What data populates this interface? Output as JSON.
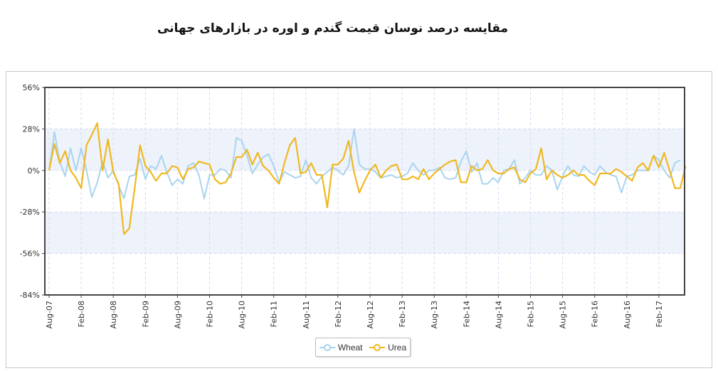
{
  "title": "مقایسه درصد نوسان قیمت گندم و اوره در بازارهای جهانی",
  "colors": {
    "wheat": "#a9d4ee",
    "urea": "#f0b820",
    "band": "#eef2fb",
    "grid": "#d3dcf0",
    "axis": "#333333"
  },
  "chart_data": {
    "type": "line",
    "title": "مقایسه درصد نوسان قیمت گندم و اوره در بازارهای جهانی",
    "xlabel": "",
    "ylabel": "",
    "ylim": [
      -84,
      56
    ],
    "yticks": [
      56,
      28,
      0,
      -28,
      -56,
      -84
    ],
    "ytick_labels": [
      "56%",
      "28%",
      "0%",
      "-28%",
      "-56%",
      "-84%"
    ],
    "x_tick_labels": [
      "Aug-07",
      "Feb-08",
      "Aug-08",
      "Feb-09",
      "Aug-09",
      "Feb-10",
      "Aug-10",
      "Feb-11",
      "Aug-11",
      "Feb-12",
      "Aug-12",
      "Feb-13",
      "Aug-13",
      "Feb-14",
      "Aug-14",
      "Feb-15",
      "Aug-15",
      "Feb-16",
      "Aug-16",
      "Feb-17"
    ],
    "x_start": "Aug-07",
    "legend": "bottom",
    "grid": true,
    "series": [
      {
        "name": "Wheat",
        "color": "#a9d4ee",
        "values": [
          0,
          26,
          6,
          -4,
          15,
          0,
          15,
          0,
          -18,
          -8,
          6,
          -5,
          0,
          -10,
          -19,
          -4,
          -3,
          8,
          -6,
          3,
          1,
          10,
          -1,
          -10,
          -6,
          -9,
          3,
          5,
          -3,
          -19,
          -3,
          -3,
          1,
          0,
          -5,
          22,
          20,
          10,
          -2,
          4,
          9,
          11,
          3,
          -8,
          -1,
          -3,
          -5,
          -4,
          7,
          -5,
          -9,
          -4,
          -1,
          2,
          0,
          -3,
          3,
          28,
          4,
          1,
          1,
          -1,
          -5,
          -4,
          -3,
          -5,
          -4,
          -2,
          5,
          0,
          -3,
          0,
          0,
          2,
          -5,
          -6,
          -5,
          6,
          13,
          -1,
          5,
          -9,
          -9,
          -5,
          -8,
          0,
          1,
          7,
          -9,
          -5,
          0,
          -3,
          -3,
          3,
          0,
          -13,
          -4,
          3,
          -3,
          -4,
          3,
          -1,
          -3,
          3,
          -1,
          -3,
          -4,
          -15,
          -4,
          -3,
          0,
          0,
          0,
          10,
          7,
          0,
          -5,
          5,
          7
        ]
      },
      {
        "name": "Urea",
        "color": "#f0b820",
        "values": [
          0,
          18,
          5,
          13,
          0,
          -5,
          -12,
          17,
          24,
          32,
          0,
          21,
          -1,
          -9,
          -43,
          -39,
          -12,
          17,
          3,
          -1,
          -7,
          -2,
          -2,
          3,
          2,
          -6,
          1,
          2,
          6,
          5,
          4,
          -6,
          -9,
          -8,
          -2,
          9,
          9,
          14,
          4,
          12,
          3,
          0,
          -5,
          -9,
          5,
          17,
          22,
          -2,
          -1,
          5,
          -3,
          -3,
          -25,
          4,
          4,
          8,
          20,
          -1,
          -15,
          -7,
          0,
          4,
          -5,
          0,
          3,
          4,
          -6,
          -6,
          -4,
          -6,
          1,
          -6,
          -2,
          1,
          4,
          6,
          7,
          -8,
          -8,
          3,
          0,
          1,
          7,
          0,
          -2,
          -2,
          1,
          2,
          -6,
          -8,
          -2,
          1,
          15,
          -6,
          0,
          -3,
          -5,
          -3,
          0,
          -3,
          -3,
          -7,
          -10,
          -2,
          -2,
          -2,
          1,
          -1,
          -4,
          -7,
          2,
          5,
          0,
          10,
          2,
          12,
          0,
          -12,
          -12,
          3
        ]
      }
    ]
  },
  "legend": {
    "wheat_label": "Wheat",
    "urea_label": "Urea"
  }
}
